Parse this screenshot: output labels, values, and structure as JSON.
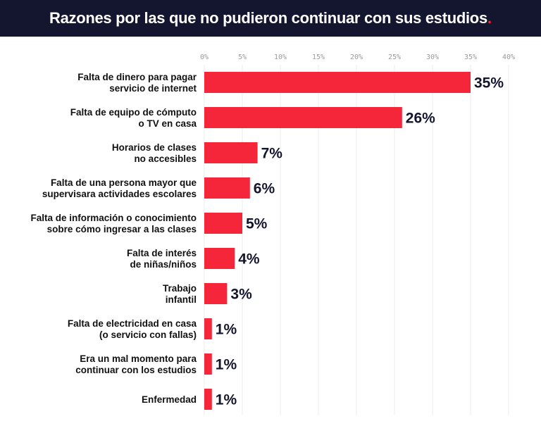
{
  "title": "Razones por las que no pudieron continuar con sus estudios",
  "title_dot": ".",
  "colors": {
    "header_bg": "#14152e",
    "bar": "#f5253a",
    "value_text": "#14152e",
    "grid": "#ececec",
    "tick": "#9a9a9a",
    "dot": "#f5253a"
  },
  "chart_data": {
    "type": "bar",
    "orientation": "horizontal",
    "xlim": [
      0,
      40
    ],
    "tick_values": [
      0,
      5,
      10,
      15,
      20,
      25,
      30,
      35,
      40
    ],
    "tick_labels": [
      "0%",
      "5%",
      "10%",
      "15%",
      "20%",
      "25%",
      "30%",
      "35%",
      "40%"
    ],
    "grid": true,
    "categories": [
      [
        "Falta de dinero para pagar",
        "servicio de internet"
      ],
      [
        "Falta de equipo de cómputo",
        "o TV en casa"
      ],
      [
        "Horarios de clases",
        "no accesibles"
      ],
      [
        "Falta de una persona mayor que",
        "supervisara actividades escolares"
      ],
      [
        "Falta de información o conocimiento",
        "sobre cómo ingresar a las clases"
      ],
      [
        "Falta de interés",
        "de niñas/niños"
      ],
      [
        "Trabajo",
        "infantil"
      ],
      [
        "Falta de electricidad en casa",
        "(o servicio con fallas)"
      ],
      [
        "Era un mal momento para",
        "continuar con los estudios"
      ],
      [
        "Enfermedad"
      ]
    ],
    "values": [
      35,
      26,
      7,
      6,
      5,
      4,
      3,
      1,
      1,
      1
    ],
    "value_labels": [
      "35%",
      "26%",
      "7%",
      "6%",
      "5%",
      "4%",
      "3%",
      "1%",
      "1%",
      "1%"
    ]
  }
}
